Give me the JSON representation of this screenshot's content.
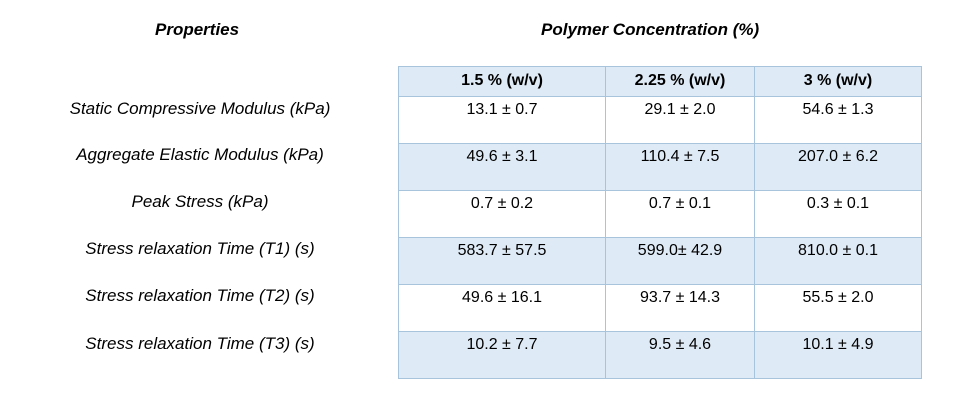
{
  "headers": {
    "properties": "Properties",
    "concentration": "Polymer Concentration (%)"
  },
  "columns": [
    "1.5 % (w/v)",
    "2.25 % (w/v)",
    "3 % (w/v)"
  ],
  "rows": [
    {
      "label": "Static Compressive Modulus (kPa)",
      "values": [
        "13.1 ± 0.7",
        "29.1 ± 2.0",
        "54.6 ± 1.3"
      ]
    },
    {
      "label": "Aggregate Elastic Modulus (kPa)",
      "values": [
        "49.6 ± 3.1",
        "110.4 ± 7.5",
        "207.0 ± 6.2"
      ]
    },
    {
      "label": "Peak Stress (kPa)",
      "values": [
        "0.7 ± 0.2",
        "0.7 ± 0.1",
        "0.3 ± 0.1"
      ]
    },
    {
      "label": "Stress relaxation Time (T1) (s)",
      "values": [
        "583.7 ± 57.5",
        "599.0± 42.9",
        "810.0 ± 0.1"
      ]
    },
    {
      "label": "Stress relaxation Time (T2) (s)",
      "values": [
        "49.6 ± 16.1",
        "93.7 ± 14.3",
        "55.5 ± 2.0"
      ]
    },
    {
      "label": "Stress relaxation Time (T3) (s)",
      "values": [
        "10.2 ± 7.7",
        "9.5 ± 4.6",
        "10.1 ± 4.9"
      ]
    }
  ],
  "colors": {
    "shade": "#deeaf6",
    "border": "#a8c4dd"
  }
}
